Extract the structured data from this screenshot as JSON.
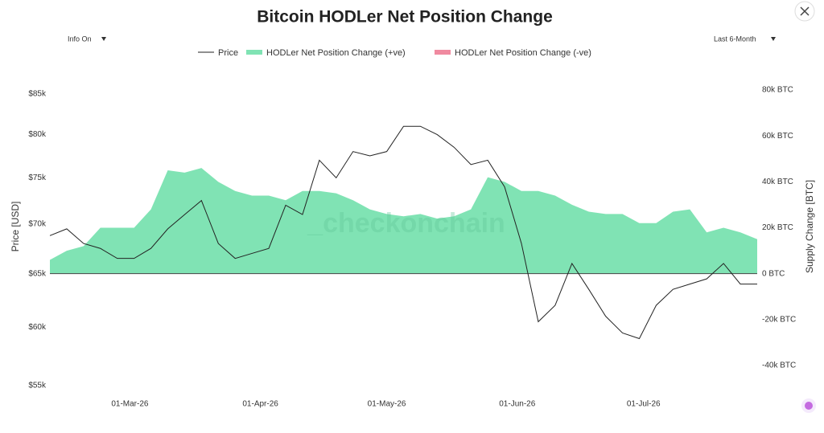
{
  "chart_data": {
    "type": "line_area",
    "title": "Bitcoin HODLer Net Position Change",
    "controls": {
      "info": "Info On",
      "range": "Last 6-Month"
    },
    "watermark": "_checkonchain",
    "y_label": "Price [USD]",
    "y2_label": "Supply Change [BTC]",
    "log_y": true,
    "x": [
      "2026-02-10",
      "2026-02-14",
      "2026-02-18",
      "2026-02-22",
      "2026-02-26",
      "2026-03-02",
      "2026-03-06",
      "2026-03-10",
      "2026-03-14",
      "2026-03-18",
      "2026-03-22",
      "2026-03-26",
      "2026-03-30",
      "2026-04-03",
      "2026-04-07",
      "2026-04-11",
      "2026-04-15",
      "2026-04-19",
      "2026-04-23",
      "2026-04-27",
      "2026-05-01",
      "2026-05-05",
      "2026-05-09",
      "2026-05-13",
      "2026-05-17",
      "2026-05-21",
      "2026-05-25",
      "2026-05-29",
      "2026-06-02",
      "2026-06-06",
      "2026-06-10",
      "2026-06-14",
      "2026-06-18",
      "2026-06-22",
      "2026-06-26",
      "2026-06-30",
      "2026-07-04",
      "2026-07-08",
      "2026-07-12",
      "2026-07-16",
      "2026-07-20",
      "2026-07-24",
      "2026-07-28"
    ],
    "xlim": [
      "2026-02-10",
      "2026-07-28"
    ],
    "xticks": [
      {
        "value": "2026-03-01",
        "label": "01-Mar-26"
      },
      {
        "value": "2026-04-01",
        "label": "01-Apr-26"
      },
      {
        "value": "2026-05-01",
        "label": "01-May-26"
      },
      {
        "value": "2026-06-01",
        "label": "01-Jun-26"
      },
      {
        "value": "2026-07-01",
        "label": "01-Jul-26"
      }
    ],
    "ylim": [
      55000,
      85000
    ],
    "yticks": [
      {
        "value": 55000,
        "label": "$55k"
      },
      {
        "value": 60000,
        "label": "$60k"
      },
      {
        "value": 65000,
        "label": "$65k"
      },
      {
        "value": 70000,
        "label": "$70k"
      },
      {
        "value": 75000,
        "label": "$75k"
      },
      {
        "value": 80000,
        "label": "$80k"
      },
      {
        "value": 85000,
        "label": "$85k"
      }
    ],
    "y2lim": [
      -40000,
      80000
    ],
    "y2ticks": [
      {
        "value": -40000,
        "label": "-40k BTC"
      },
      {
        "value": -20000,
        "label": "-20k BTC"
      },
      {
        "value": 0,
        "label": "0 BTC"
      },
      {
        "value": 20000,
        "label": "20k BTC"
      },
      {
        "value": 40000,
        "label": "40k BTC"
      },
      {
        "value": 60000,
        "label": "60k BTC"
      },
      {
        "value": 80000,
        "label": "80k BTC"
      }
    ],
    "series": [
      {
        "name": "Price",
        "kind": "line",
        "color": "#222222",
        "values": [
          68800,
          69500,
          68000,
          67500,
          66500,
          66500,
          67500,
          69500,
          71000,
          72500,
          68000,
          66500,
          67000,
          67500,
          72000,
          71000,
          77000,
          75000,
          78000,
          77500,
          78000,
          81000,
          81000,
          80000,
          78500,
          76500,
          77000,
          74000,
          68000,
          60500,
          62000,
          66000,
          63500,
          61000,
          59500,
          59000,
          62000,
          63500,
          64000,
          64500,
          66000,
          64000,
          64000
        ]
      },
      {
        "name": "HODLer Net Position Change (+ve)",
        "kind": "area",
        "axis": "y2",
        "color": "#80e3b4",
        "values": [
          6000,
          10000,
          12000,
          20000,
          20000,
          20000,
          28000,
          45000,
          44000,
          46000,
          40000,
          36000,
          34000,
          34000,
          32000,
          36000,
          36000,
          35000,
          32000,
          28000,
          26000,
          25000,
          26000,
          24000,
          25000,
          28000,
          42000,
          40000,
          36000,
          36000,
          34000,
          30000,
          27000,
          26000,
          26000,
          22000,
          22000,
          27000,
          28000,
          18000,
          20000,
          18000,
          15000
        ]
      },
      {
        "name": "HODLer Net Position Change (-ve)",
        "kind": "area",
        "axis": "y2",
        "color": "#f08aa0",
        "values": [
          null,
          null,
          null,
          null,
          null,
          null,
          null,
          null,
          null,
          null,
          null,
          null,
          null,
          null,
          null,
          null,
          null,
          null,
          null,
          null,
          null,
          null,
          null,
          null,
          null,
          null,
          null,
          null,
          null,
          null,
          null,
          null,
          null,
          null,
          null,
          null,
          null,
          null,
          null,
          null,
          null,
          null,
          null
        ]
      }
    ]
  }
}
